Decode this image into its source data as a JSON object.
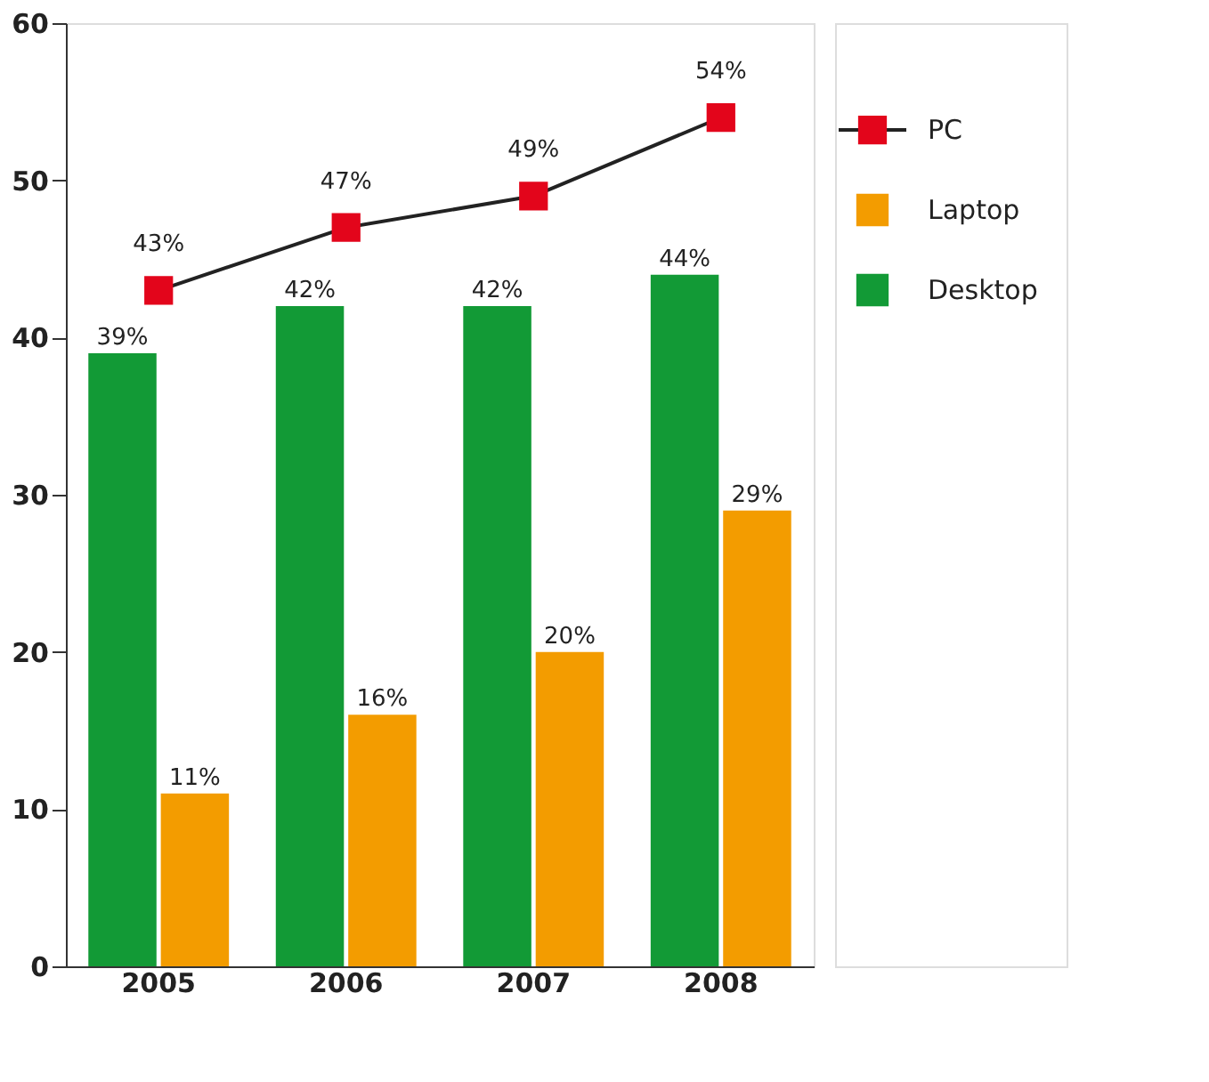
{
  "chart_data": {
    "type": "bar",
    "categories": [
      "2005",
      "2006",
      "2007",
      "2008"
    ],
    "series": [
      {
        "name": "Desktop",
        "color": "#129a36",
        "values": [
          39,
          42,
          42,
          44
        ],
        "value_labels": [
          "39%",
          "42%",
          "42%",
          "44%"
        ]
      },
      {
        "name": "Laptop",
        "color": "#f39c00",
        "values": [
          11,
          16,
          20,
          29
        ],
        "value_labels": [
          "11%",
          "16%",
          "20%",
          "29%"
        ]
      },
      {
        "name": "PC",
        "type": "line",
        "color": "#e3051b",
        "values": [
          43,
          47,
          49,
          54
        ],
        "value_labels": [
          "43%",
          "47%",
          "49%",
          "54%"
        ],
        "marker": "square"
      }
    ],
    "ylim": [
      0,
      60
    ],
    "yticks": [
      0,
      10,
      20,
      30,
      40,
      50,
      60
    ],
    "grid": false,
    "legend": "top right"
  }
}
